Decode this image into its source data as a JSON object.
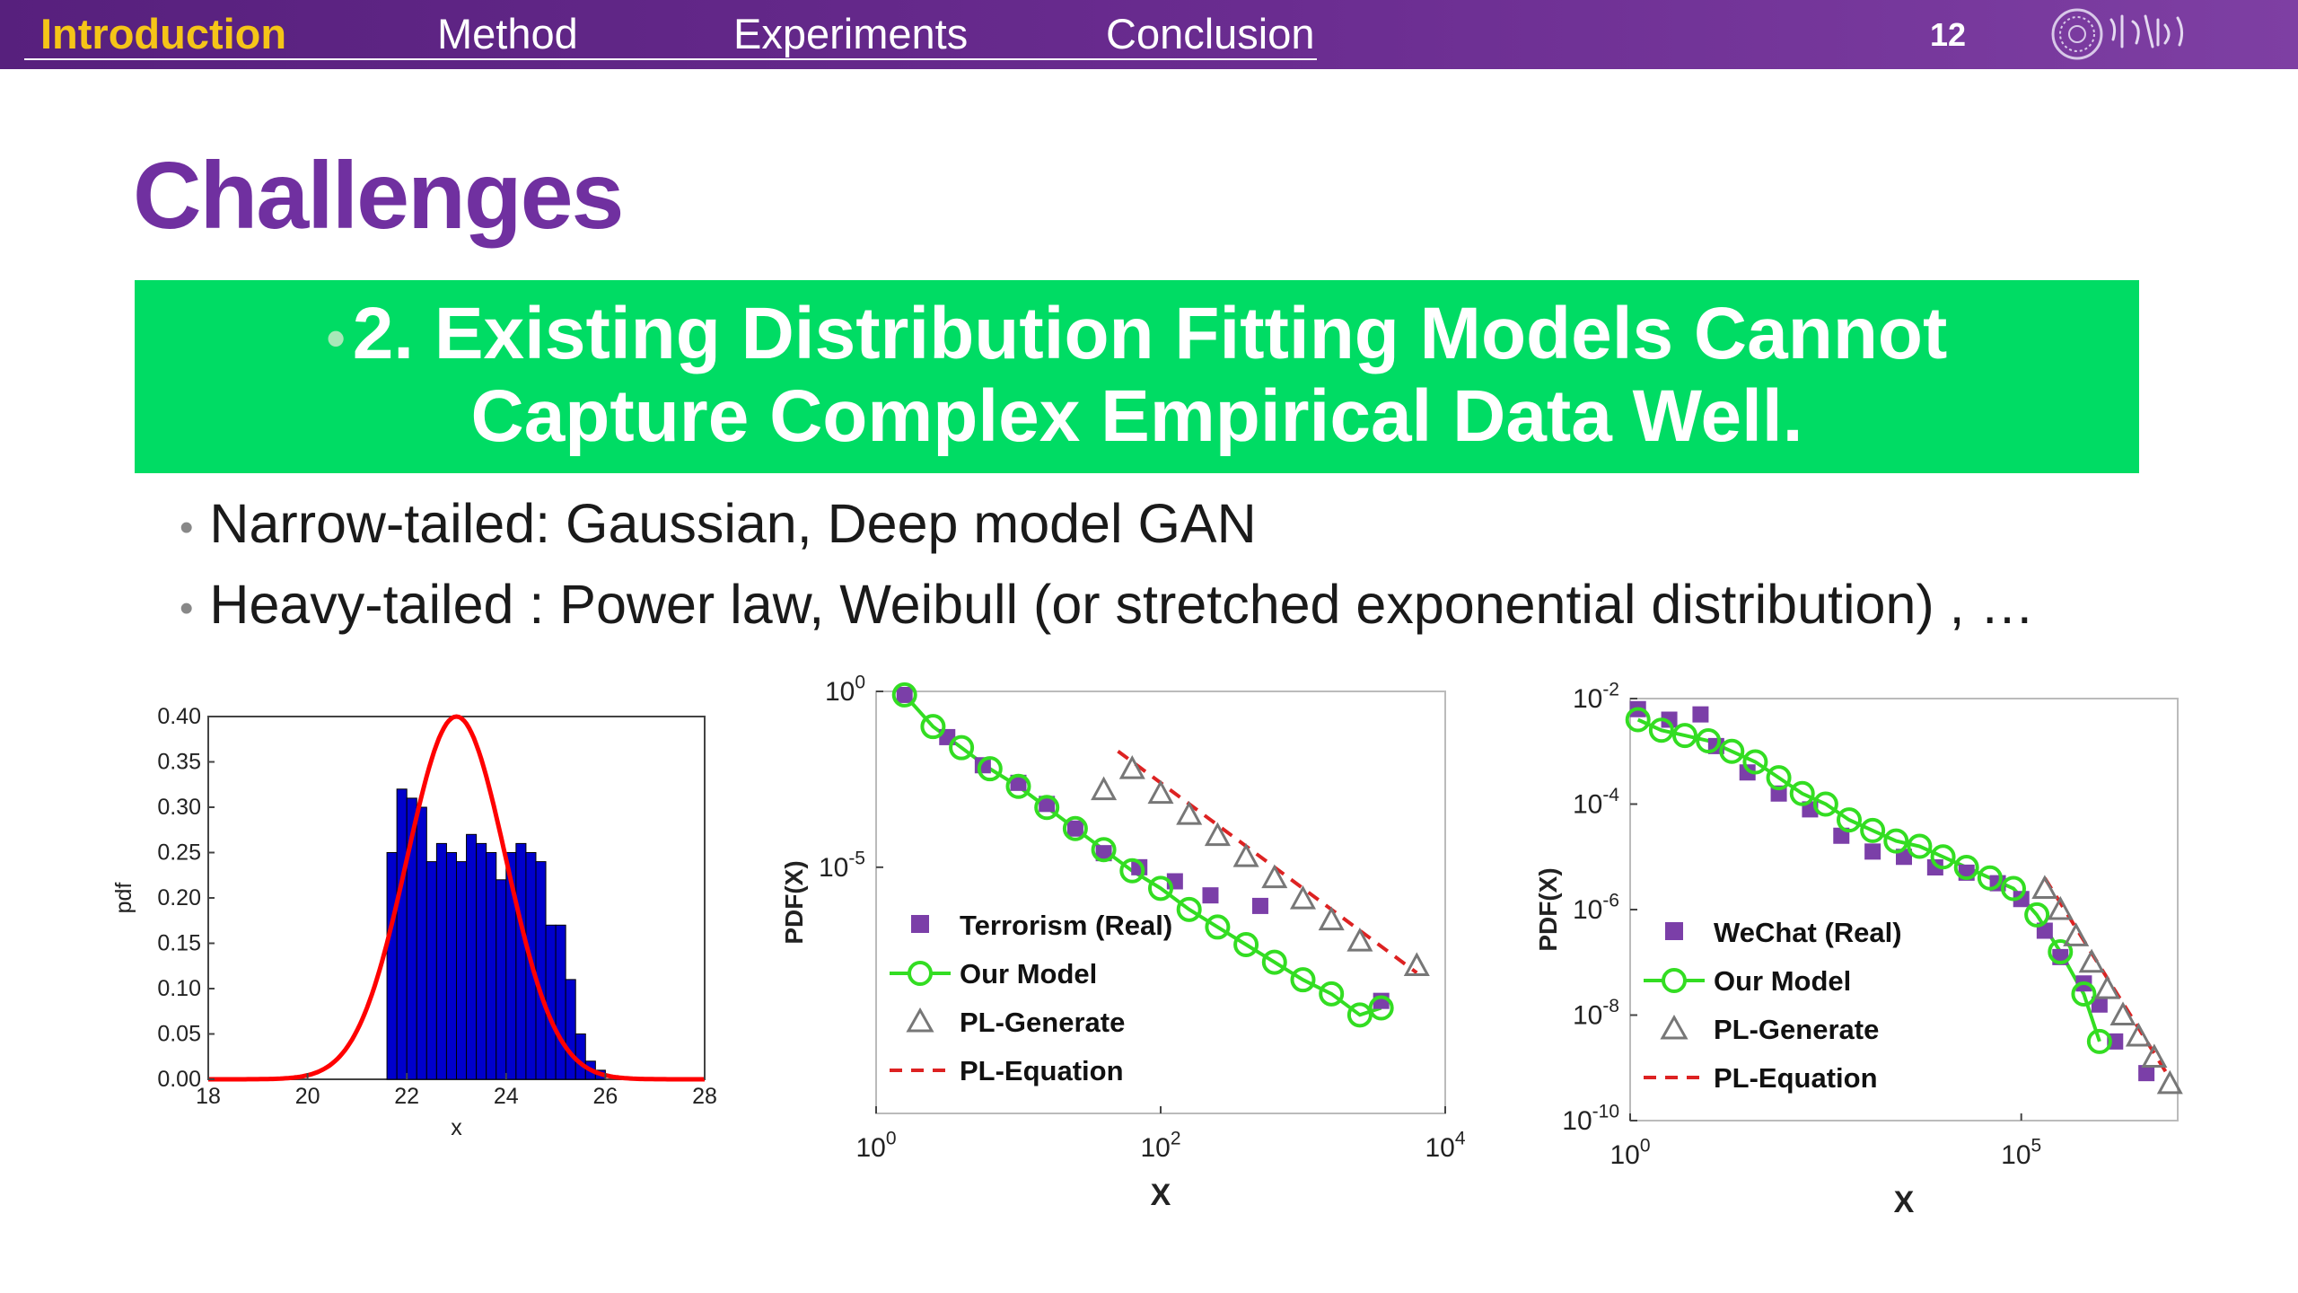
{
  "nav": {
    "items": [
      "Introduction",
      "Method",
      "Experiments",
      "Conclusion"
    ],
    "active": "Introduction",
    "slide_number": "12"
  },
  "slide": {
    "title": "Challenges",
    "banner_line1": "2. Existing Distribution Fitting Models Cannot",
    "banner_line2": "Capture Complex Empirical Data Well.",
    "bullets": [
      "Narrow-tailed: Gaussian, Deep model GAN",
      "Heavy-tailed : Power law, Weibull (or stretched exponential distribution) , …"
    ]
  },
  "colors": {
    "accent": "#7030a0",
    "banner": "#00dc64",
    "nav_active": "#f5c518",
    "hist": "#0000cc",
    "gaussian": "#ff0000",
    "real": "#7b3fa8",
    "model": "#33dd22",
    "pl_generate": "#777777",
    "pl_equation": "#dd2222"
  },
  "chart_data": [
    {
      "type": "bar",
      "xlabel": "x",
      "ylabel": "pdf",
      "xlim": [
        18,
        28
      ],
      "ylim": [
        0,
        0.4
      ],
      "xticks": [
        "18",
        "20",
        "22",
        "24",
        "26",
        "28"
      ],
      "yticks": [
        "0.00",
        "0.05",
        "0.10",
        "0.15",
        "0.20",
        "0.25",
        "0.30",
        "0.35",
        "0.40"
      ],
      "bin_width": 0.2,
      "bins_x": [
        21.6,
        21.8,
        22.0,
        22.2,
        22.4,
        22.6,
        22.8,
        23.0,
        23.2,
        23.4,
        23.6,
        23.8,
        24.0,
        24.2,
        24.4,
        24.6,
        24.8,
        25.0,
        25.2,
        25.4,
        25.6,
        25.8,
        26.0
      ],
      "values": [
        0.25,
        0.32,
        0.31,
        0.3,
        0.24,
        0.26,
        0.25,
        0.24,
        0.27,
        0.26,
        0.25,
        0.22,
        0.25,
        0.26,
        0.25,
        0.24,
        0.17,
        0.17,
        0.11,
        0.05,
        0.02,
        0.01,
        0.0
      ],
      "series": [
        {
          "name": "gaussian fit",
          "mean": 23.0,
          "sd": 1.0,
          "peak": 0.4
        }
      ],
      "grid": false
    },
    {
      "type": "scatter",
      "xlabel": "X",
      "ylabel": "PDF(X)",
      "x_scale": "log",
      "y_scale": "log",
      "xlim_exp": [
        0,
        4
      ],
      "ylim_exp": [
        -12,
        0
      ],
      "xticks": [
        "10^0",
        "10^2",
        "10^4"
      ],
      "yticks": [
        "10^0",
        "10^-5"
      ],
      "legend": [
        "Terrorism (Real)",
        "Our Model",
        "PL-Generate",
        "PL-Equation"
      ],
      "legend_position": "bottom-left",
      "series": [
        {
          "name": "Terrorism (Real)",
          "marker": "square",
          "log_x": [
            0.2,
            0.5,
            0.75,
            1.0,
            1.2,
            1.4,
            1.6,
            1.85,
            2.1,
            2.35,
            2.7,
            3.55
          ],
          "log_y": [
            -0.1,
            -1.3,
            -2.1,
            -2.6,
            -3.2,
            -3.9,
            -4.6,
            -5.0,
            -5.4,
            -5.8,
            -6.1,
            -8.8
          ]
        },
        {
          "name": "Our Model",
          "marker": "circle",
          "log_x": [
            0.2,
            0.4,
            0.6,
            0.8,
            1.0,
            1.2,
            1.4,
            1.6,
            1.8,
            2.0,
            2.2,
            2.4,
            2.6,
            2.8,
            3.0,
            3.2,
            3.4,
            3.55
          ],
          "log_y": [
            -0.1,
            -1.0,
            -1.6,
            -2.2,
            -2.7,
            -3.3,
            -3.9,
            -4.5,
            -5.1,
            -5.6,
            -6.2,
            -6.7,
            -7.2,
            -7.7,
            -8.2,
            -8.6,
            -9.2,
            -9.0
          ]
        },
        {
          "name": "PL-Generate",
          "marker": "triangle",
          "log_x": [
            1.6,
            1.8,
            2.0,
            2.2,
            2.4,
            2.6,
            2.8,
            3.0,
            3.2,
            3.4,
            3.8
          ],
          "log_y": [
            -2.8,
            -2.2,
            -2.9,
            -3.5,
            -4.1,
            -4.7,
            -5.3,
            -5.9,
            -6.5,
            -7.1,
            -7.8
          ]
        },
        {
          "name": "PL-Equation",
          "marker": "dash",
          "log_x": [
            1.7,
            3.8
          ],
          "log_y": [
            -1.7,
            -8.0
          ]
        }
      ]
    },
    {
      "type": "scatter",
      "xlabel": "X",
      "ylabel": "PDF(X)",
      "x_scale": "log",
      "y_scale": "log",
      "xlim_exp": [
        0,
        7
      ],
      "ylim_exp": [
        -10,
        -2
      ],
      "xticks": [
        "10^0",
        "10^5"
      ],
      "yticks": [
        "10^-2",
        "10^-4",
        "10^-6",
        "10^-8",
        "10^-10"
      ],
      "legend": [
        "WeChat (Real)",
        "Our Model",
        "PL-Generate",
        "PL-Equation"
      ],
      "legend_position": "bottom-left",
      "series": [
        {
          "name": "WeChat (Real)",
          "marker": "square",
          "log_x": [
            0.1,
            0.5,
            0.9,
            1.1,
            1.5,
            1.9,
            2.3,
            2.7,
            3.1,
            3.5,
            3.9,
            4.3,
            4.7,
            5.0,
            5.3,
            5.5,
            5.8,
            6.0,
            6.2,
            6.6
          ],
          "log_y": [
            -2.2,
            -2.4,
            -2.3,
            -2.9,
            -3.4,
            -3.8,
            -4.1,
            -4.6,
            -4.9,
            -5.0,
            -5.2,
            -5.3,
            -5.5,
            -5.8,
            -6.4,
            -6.9,
            -7.4,
            -7.8,
            -8.5,
            -9.1
          ]
        },
        {
          "name": "Our Model",
          "marker": "circle",
          "log_x": [
            0.1,
            0.4,
            0.7,
            1.0,
            1.3,
            1.6,
            1.9,
            2.2,
            2.5,
            2.8,
            3.1,
            3.4,
            3.7,
            4.0,
            4.3,
            4.6,
            4.9,
            5.2,
            5.5,
            5.8,
            6.0
          ],
          "log_y": [
            -2.4,
            -2.6,
            -2.7,
            -2.8,
            -3.0,
            -3.2,
            -3.5,
            -3.8,
            -4.0,
            -4.3,
            -4.5,
            -4.7,
            -4.8,
            -5.0,
            -5.2,
            -5.4,
            -5.6,
            -6.1,
            -6.8,
            -7.6,
            -8.5
          ]
        },
        {
          "name": "PL-Generate",
          "marker": "triangle",
          "log_x": [
            5.3,
            5.5,
            5.7,
            5.9,
            6.1,
            6.3,
            6.5,
            6.7,
            6.9
          ],
          "log_y": [
            -5.6,
            -6.0,
            -6.5,
            -7.0,
            -7.5,
            -8.0,
            -8.4,
            -8.8,
            -9.3
          ]
        },
        {
          "name": "PL-Equation",
          "marker": "dash",
          "log_x": [
            5.3,
            6.9
          ],
          "log_y": [
            -5.4,
            -9.2
          ]
        }
      ]
    }
  ]
}
